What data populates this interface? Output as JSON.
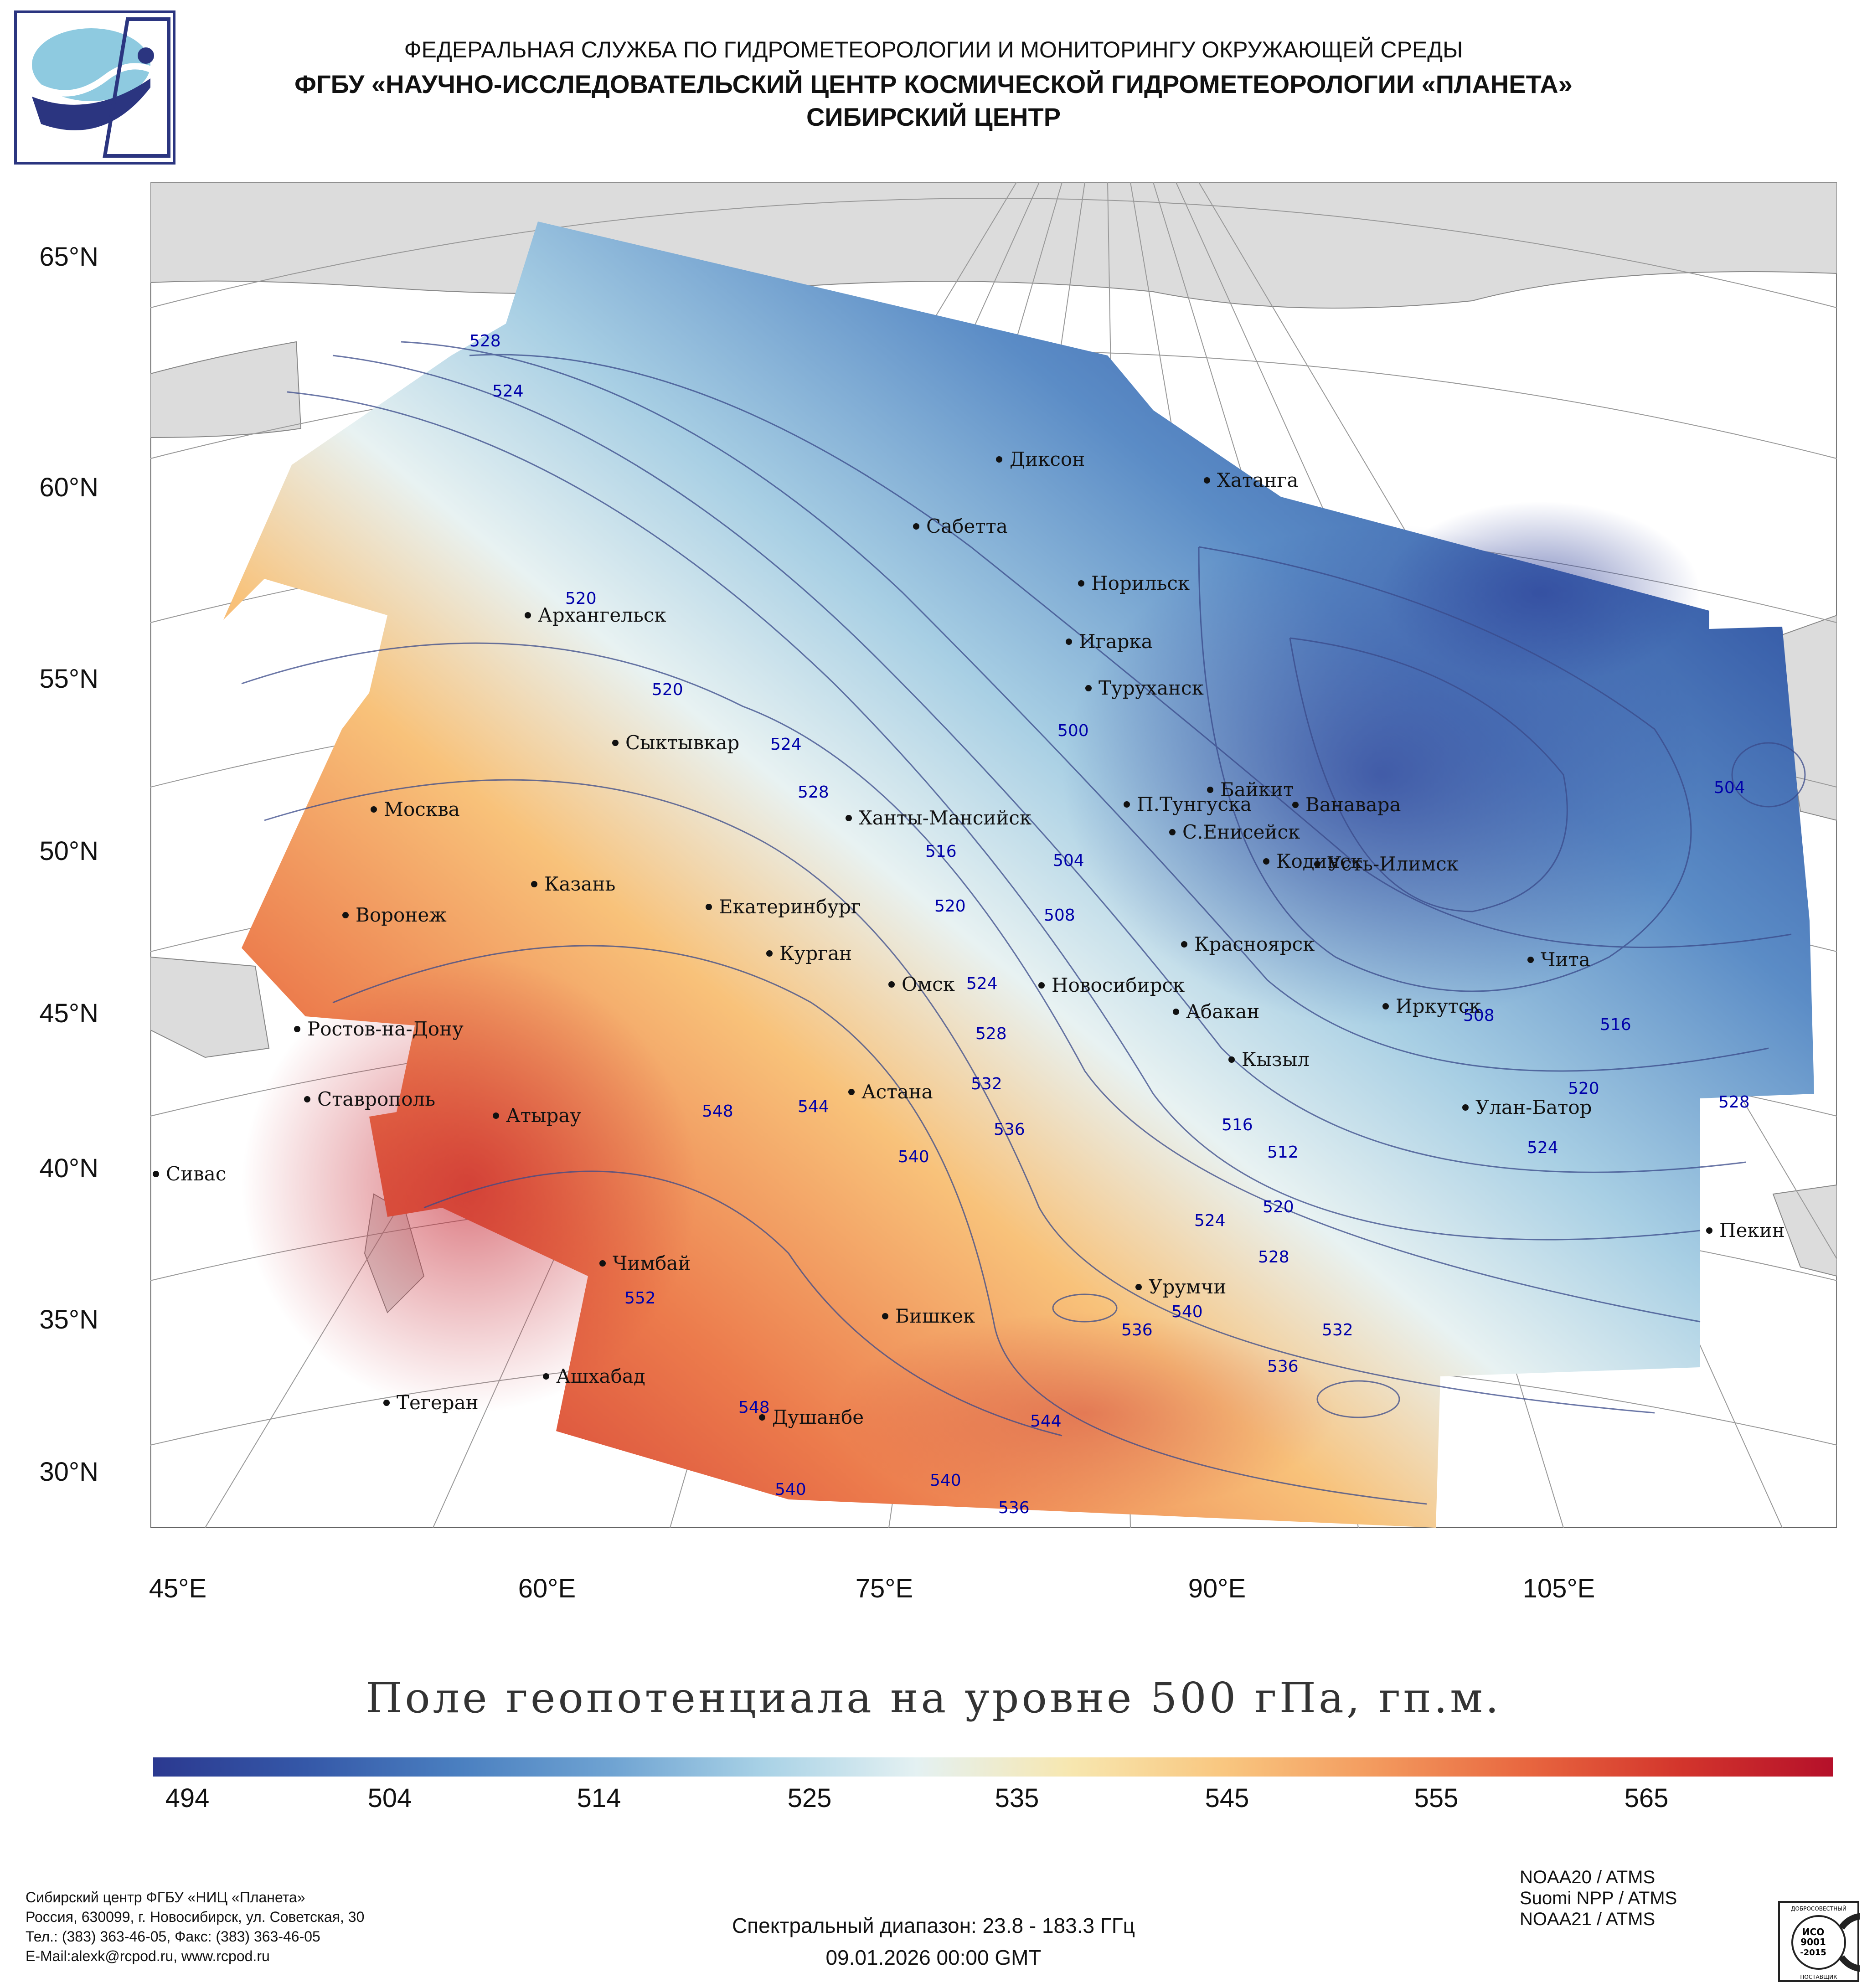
{
  "header": {
    "line1": "ФЕДЕРАЛЬНАЯ СЛУЖБА ПО ГИДРОМЕТЕОРОЛОГИИ И МОНИТОРИНГУ ОКРУЖАЮЩЕЙ СРЕДЫ",
    "line2": "ФГБУ «НАУЧНО-ИССЛЕДОВАТЕЛЬСКИЙ ЦЕНТР КОСМИЧЕСКОЙ ГИДРОМЕТЕОРОЛОГИИ «ПЛАНЕТА»",
    "line3": "СИБИРСКИЙ ЦЕНТР"
  },
  "axes": {
    "lat": [
      "65°N",
      "60°N",
      "55°N",
      "50°N",
      "45°N",
      "40°N",
      "35°N",
      "30°N"
    ],
    "lon": [
      "45°E",
      "60°E",
      "75°E",
      "90°E",
      "105°E"
    ]
  },
  "cities": [
    "Диксон",
    "Хатанга",
    "Сабетта",
    "Норильск",
    "Архангельск",
    "Игарка",
    "Туруханск",
    "Сыктывкар",
    "Байкит",
    "П.Тунгуска",
    "Ванавара",
    "Москва",
    "Ханты-Мансийск",
    "С.Енисейск",
    "Кодинск",
    "Усть-Илимск",
    "Казань",
    "Екатеринбург",
    "Воронеж",
    "Красноярск",
    "Курган",
    "Чита",
    "Омск",
    "Новосибирск",
    "Иркутск",
    "Ростов-на-Дону",
    "Абакан",
    "Кызыл",
    "Астана",
    "Улан-Батор",
    "Ставрополь",
    "Атырау",
    "Сивас",
    "Пекин",
    "Чимбай",
    "Урумчи",
    "Бишкек",
    "Ашхабад",
    "Тегеран",
    "Душанбе"
  ],
  "contour_labels": [
    "528",
    "524",
    "520",
    "520",
    "500",
    "504",
    "524",
    "528",
    "516",
    "520",
    "504",
    "508",
    "524",
    "528",
    "532",
    "536",
    "544",
    "540",
    "548",
    "552",
    "516",
    "512",
    "520",
    "524",
    "528",
    "536",
    "540",
    "532",
    "536",
    "544",
    "540",
    "536",
    "548",
    "540",
    "508",
    "516",
    "520",
    "524",
    "528"
  ],
  "map_title": "Поле геопотенциала на уровне 500 гПа, гп.м.",
  "colorbar": {
    "ticks": [
      "494",
      "504",
      "514",
      "525",
      "535",
      "545",
      "555",
      "565"
    ],
    "colors": [
      "#2b3990",
      "#3558a8",
      "#4a7fc0",
      "#6fa3d2",
      "#a9d2e6",
      "#e4f1f2",
      "#f7e7b0",
      "#f9c780",
      "#f39a5e",
      "#e8663f",
      "#d3352c",
      "#b5102a"
    ]
  },
  "footer": {
    "org1": "Сибирский центр ФГБУ «НИЦ «Планета»",
    "org2": "Россия, 630099, г. Новосибирск, ул. Советская, 30",
    "org3": "Тел.: (383) 363-46-05, Факс: (383) 363-46-05",
    "org4": "E-Mail:alexk@rcpod.ru, www.rcpod.ru",
    "spectral": "Спектральный диапазон: 23.8 - 183.3 ГГц",
    "datetime": "09.01.2026 00:00 GMT",
    "sat1": "NOAA20 / ATMS",
    "sat2": "Suomi NPP / ATMS",
    "sat3": "NOAA21 / ATMS",
    "iso_top": "ДОБРОСОВЕСТНЫЙ",
    "iso_mid1": "ИСО",
    "iso_mid2": "9001",
    "iso_mid3": "-2015",
    "iso_bottom": "ПОСТАВЩИК"
  }
}
